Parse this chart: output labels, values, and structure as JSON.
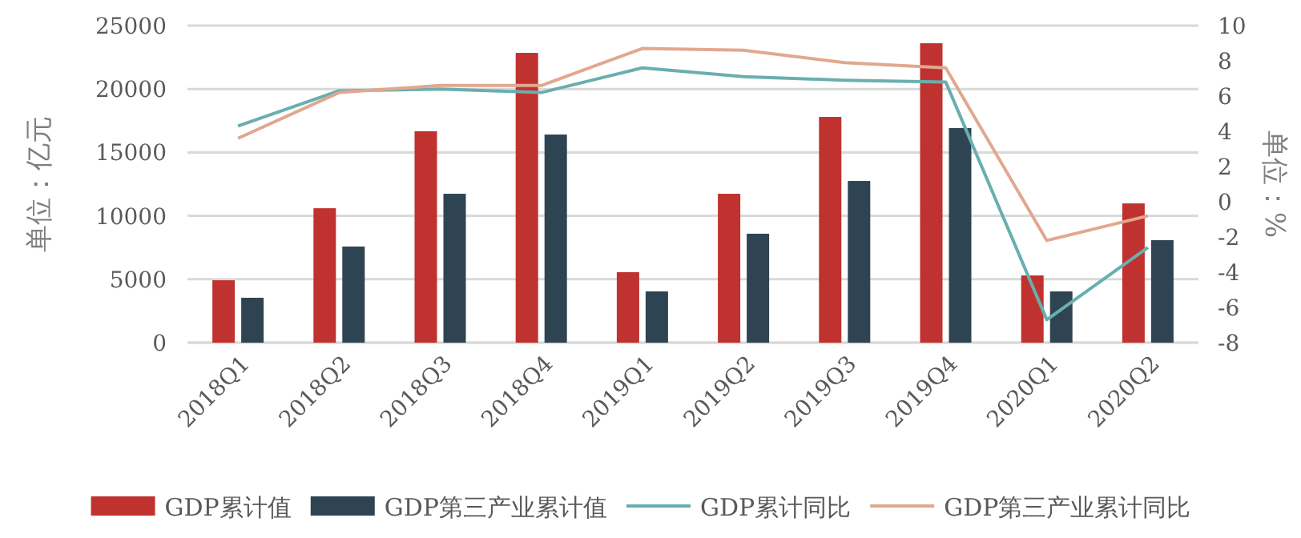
{
  "chart_data": {
    "type": "bar",
    "categories": [
      "2018Q1",
      "2018Q2",
      "2018Q3",
      "2018Q4",
      "2019Q1",
      "2019Q2",
      "2019Q3",
      "2019Q4",
      "2020Q1",
      "2020Q2"
    ],
    "series": [
      {
        "name": "GDP累计值",
        "color": "#c0322f",
        "values": [
          4920,
          10600,
          16670,
          22850,
          5560,
          11740,
          17800,
          23610,
          5300,
          10980
        ]
      },
      {
        "name": "GDP第三产业累计值",
        "color": "#2e4453",
        "values": [
          3540,
          7580,
          11740,
          16410,
          4040,
          8590,
          12750,
          16920,
          4040,
          8080
        ]
      },
      {
        "name": "GDP累计同比",
        "type": "line",
        "axis": "y2",
        "color": "#6aaeaf",
        "values": [
          4.3,
          6.3,
          6.4,
          6.2,
          7.6,
          7.1,
          6.9,
          6.8,
          -6.7,
          -2.6
        ]
      },
      {
        "name": "GDP第三产业累计同比",
        "type": "line",
        "axis": "y2",
        "color": "#e0a890",
        "values": [
          3.6,
          6.2,
          6.6,
          6.6,
          8.7,
          8.6,
          7.9,
          7.6,
          -2.2,
          -0.8
        ]
      }
    ],
    "ylabel": "单位：亿元",
    "y2label": "单位：%",
    "ylim": [
      0,
      25000
    ],
    "yticks": [
      0,
      5000,
      10000,
      15000,
      20000,
      25000
    ],
    "y2lim": [
      -8,
      10
    ],
    "y2ticks": [
      -8,
      -6,
      -4,
      -2,
      0,
      2,
      4,
      6,
      8,
      10
    ],
    "grid": "y",
    "legend": "bottom"
  }
}
